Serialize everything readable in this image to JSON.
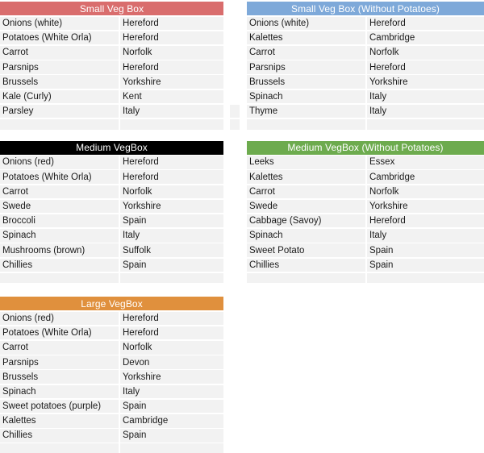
{
  "page": {
    "background": "#ffffff",
    "row_background": "#f2f2f2",
    "body_text_color": "#1a1a1a",
    "header_text_color": "#ffffff"
  },
  "tables": [
    {
      "title": "Small Veg Box",
      "header_color": "#d96d6d",
      "rows": [
        {
          "item": "Onions (white)",
          "origin": "Hereford"
        },
        {
          "item": "Potatoes (White Orla)",
          "origin": "Hereford"
        },
        {
          "item": "Carrot",
          "origin": "Norfolk"
        },
        {
          "item": "Parsnips",
          "origin": "Hereford"
        },
        {
          "item": "Brussels",
          "origin": "Yorkshire"
        },
        {
          "item": "Kale (Curly)",
          "origin": "Kent"
        },
        {
          "item": "Parsley",
          "origin": "Italy"
        }
      ]
    },
    {
      "title": "Small Veg Box (Without Potatoes)",
      "header_color": "#7ea9d9",
      "rows": [
        {
          "item": "Onions (white)",
          "origin": "Hereford"
        },
        {
          "item": "Kalettes",
          "origin": "Cambridge"
        },
        {
          "item": "Carrot",
          "origin": "Norfolk"
        },
        {
          "item": "Parsnips",
          "origin": "Hereford"
        },
        {
          "item": "Brussels",
          "origin": "Yorkshire"
        },
        {
          "item": "Spinach",
          "origin": "Italy"
        },
        {
          "item": "Thyme",
          "origin": "Italy"
        }
      ]
    },
    {
      "title": "Medium VegBox",
      "header_color": "#000000",
      "rows": [
        {
          "item": "Onions (red)",
          "origin": "Hereford"
        },
        {
          "item": "Potatoes (White Orla)",
          "origin": "Hereford"
        },
        {
          "item": "Carrot",
          "origin": "Norfolk"
        },
        {
          "item": "Swede",
          "origin": "Yorkshire"
        },
        {
          "item": "Broccoli",
          "origin": "Spain"
        },
        {
          "item": "Spinach",
          "origin": "Italy"
        },
        {
          "item": "Mushrooms (brown)",
          "origin": "Suffolk"
        },
        {
          "item": "Chillies",
          "origin": "Spain"
        }
      ]
    },
    {
      "title": "Medium VegBox (Without Potatoes)",
      "header_color": "#6dab4e",
      "rows": [
        {
          "item": "Leeks",
          "origin": "Essex"
        },
        {
          "item": "Kalettes",
          "origin": "Cambridge"
        },
        {
          "item": "Carrot",
          "origin": "Norfolk"
        },
        {
          "item": "Swede",
          "origin": "Yorkshire"
        },
        {
          "item": "Cabbage (Savoy)",
          "origin": "Hereford"
        },
        {
          "item": "Spinach",
          "origin": "Italy"
        },
        {
          "item": "Sweet Potato",
          "origin": "Spain"
        },
        {
          "item": "Chillies",
          "origin": "Spain"
        }
      ]
    },
    {
      "title": "Large VegBox",
      "header_color": "#e0903d",
      "rows": [
        {
          "item": "Onions (red)",
          "origin": "Hereford"
        },
        {
          "item": "Potatoes (White Orla)",
          "origin": "Hereford"
        },
        {
          "item": "Carrot",
          "origin": "Norfolk"
        },
        {
          "item": "Parsnips",
          "origin": "Devon"
        },
        {
          "item": "Brussels",
          "origin": "Yorkshire"
        },
        {
          "item": "Spinach",
          "origin": "Italy"
        },
        {
          "item": "Sweet potatoes (purple)",
          "origin": "Spain"
        },
        {
          "item": "Kalettes",
          "origin": "Cambridge"
        },
        {
          "item": "Chillies",
          "origin": "Spain"
        }
      ]
    }
  ]
}
